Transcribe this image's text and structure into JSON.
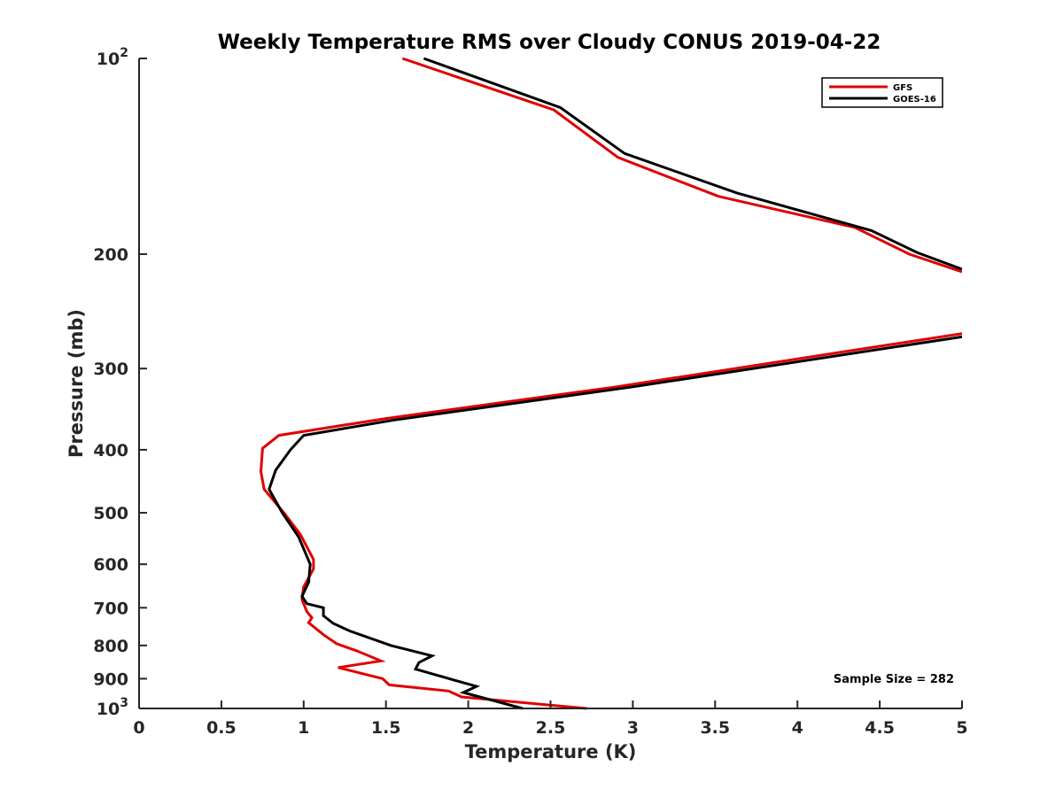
{
  "chart_data": {
    "type": "line",
    "title": "Weekly Temperature RMS over Cloudy CONUS 2019-04-22",
    "xlabel": "Temperature (K)",
    "ylabel": "Pressure (mb)",
    "xlim": [
      0,
      5
    ],
    "ylim": [
      100,
      1000
    ],
    "y_scale": "log",
    "y_reversed": true,
    "grid": false,
    "legend_position": "top-right",
    "x_ticks": [
      {
        "value": 0,
        "label": "0"
      },
      {
        "value": 0.5,
        "label": "0.5"
      },
      {
        "value": 1,
        "label": "1"
      },
      {
        "value": 1.5,
        "label": "1.5"
      },
      {
        "value": 2,
        "label": "2"
      },
      {
        "value": 2.5,
        "label": "2.5"
      },
      {
        "value": 3,
        "label": "3"
      },
      {
        "value": 3.5,
        "label": "3.5"
      },
      {
        "value": 4,
        "label": "4"
      },
      {
        "value": 4.5,
        "label": "4.5"
      },
      {
        "value": 5,
        "label": "5"
      }
    ],
    "y_ticks": [
      {
        "value": 100,
        "base": "10",
        "exp": "2"
      },
      {
        "value": 200,
        "label": "200"
      },
      {
        "value": 300,
        "label": "300"
      },
      {
        "value": 400,
        "label": "400"
      },
      {
        "value": 500,
        "label": "500"
      },
      {
        "value": 600,
        "label": "600"
      },
      {
        "value": 700,
        "label": "700"
      },
      {
        "value": 800,
        "label": "800"
      },
      {
        "value": 900,
        "label": "900"
      },
      {
        "value": 1000,
        "base": "10",
        "exp": "3"
      }
    ],
    "annotation": "Sample Size = 282",
    "series": [
      {
        "name": "GFS",
        "color": "#e00000",
        "points": [
          [
            1.6,
            100
          ],
          [
            2.52,
            120
          ],
          [
            2.91,
            142
          ],
          [
            3.52,
            163
          ],
          [
            4.35,
            182
          ],
          [
            4.68,
            200
          ],
          [
            5.0,
            213
          ],
          [
            null,
            null
          ],
          [
            5.0,
            265
          ],
          [
            2.9,
            320
          ],
          [
            1.5,
            358
          ],
          [
            0.85,
            380
          ],
          [
            0.75,
            398
          ],
          [
            0.74,
            432
          ],
          [
            0.76,
            460
          ],
          [
            0.88,
            500
          ],
          [
            0.98,
            540
          ],
          [
            1.06,
            590
          ],
          [
            1.06,
            610
          ],
          [
            1.0,
            650
          ],
          [
            0.99,
            680
          ],
          [
            1.02,
            710
          ],
          [
            1.05,
            725
          ],
          [
            1.03,
            738
          ],
          [
            1.12,
            770
          ],
          [
            1.2,
            795
          ],
          [
            1.32,
            815
          ],
          [
            1.47,
            845
          ],
          [
            1.21,
            865
          ],
          [
            1.48,
            900
          ],
          [
            1.52,
            920
          ],
          [
            1.88,
            940
          ],
          [
            1.96,
            960
          ],
          [
            2.72,
            1000
          ]
        ]
      },
      {
        "name": "GOES-16",
        "color": "#000000",
        "points": [
          [
            1.73,
            100
          ],
          [
            2.56,
            119
          ],
          [
            2.95,
            140
          ],
          [
            3.63,
            161
          ],
          [
            4.45,
            184
          ],
          [
            4.73,
            199
          ],
          [
            5.0,
            211
          ],
          [
            null,
            null
          ],
          [
            5.0,
            268
          ],
          [
            3.0,
            320
          ],
          [
            1.55,
            360
          ],
          [
            1.0,
            380
          ],
          [
            0.92,
            400
          ],
          [
            0.83,
            430
          ],
          [
            0.79,
            460
          ],
          [
            0.87,
            500
          ],
          [
            0.97,
            545
          ],
          [
            1.04,
            600
          ],
          [
            1.03,
            640
          ],
          [
            0.99,
            672
          ],
          [
            1.02,
            690
          ],
          [
            1.12,
            700
          ],
          [
            1.12,
            720
          ],
          [
            1.18,
            740
          ],
          [
            1.28,
            760
          ],
          [
            1.53,
            800
          ],
          [
            1.78,
            830
          ],
          [
            1.7,
            850
          ],
          [
            1.68,
            870
          ],
          [
            1.85,
            895
          ],
          [
            2.05,
            925
          ],
          [
            1.97,
            945
          ],
          [
            2.33,
            1000
          ]
        ]
      }
    ]
  }
}
